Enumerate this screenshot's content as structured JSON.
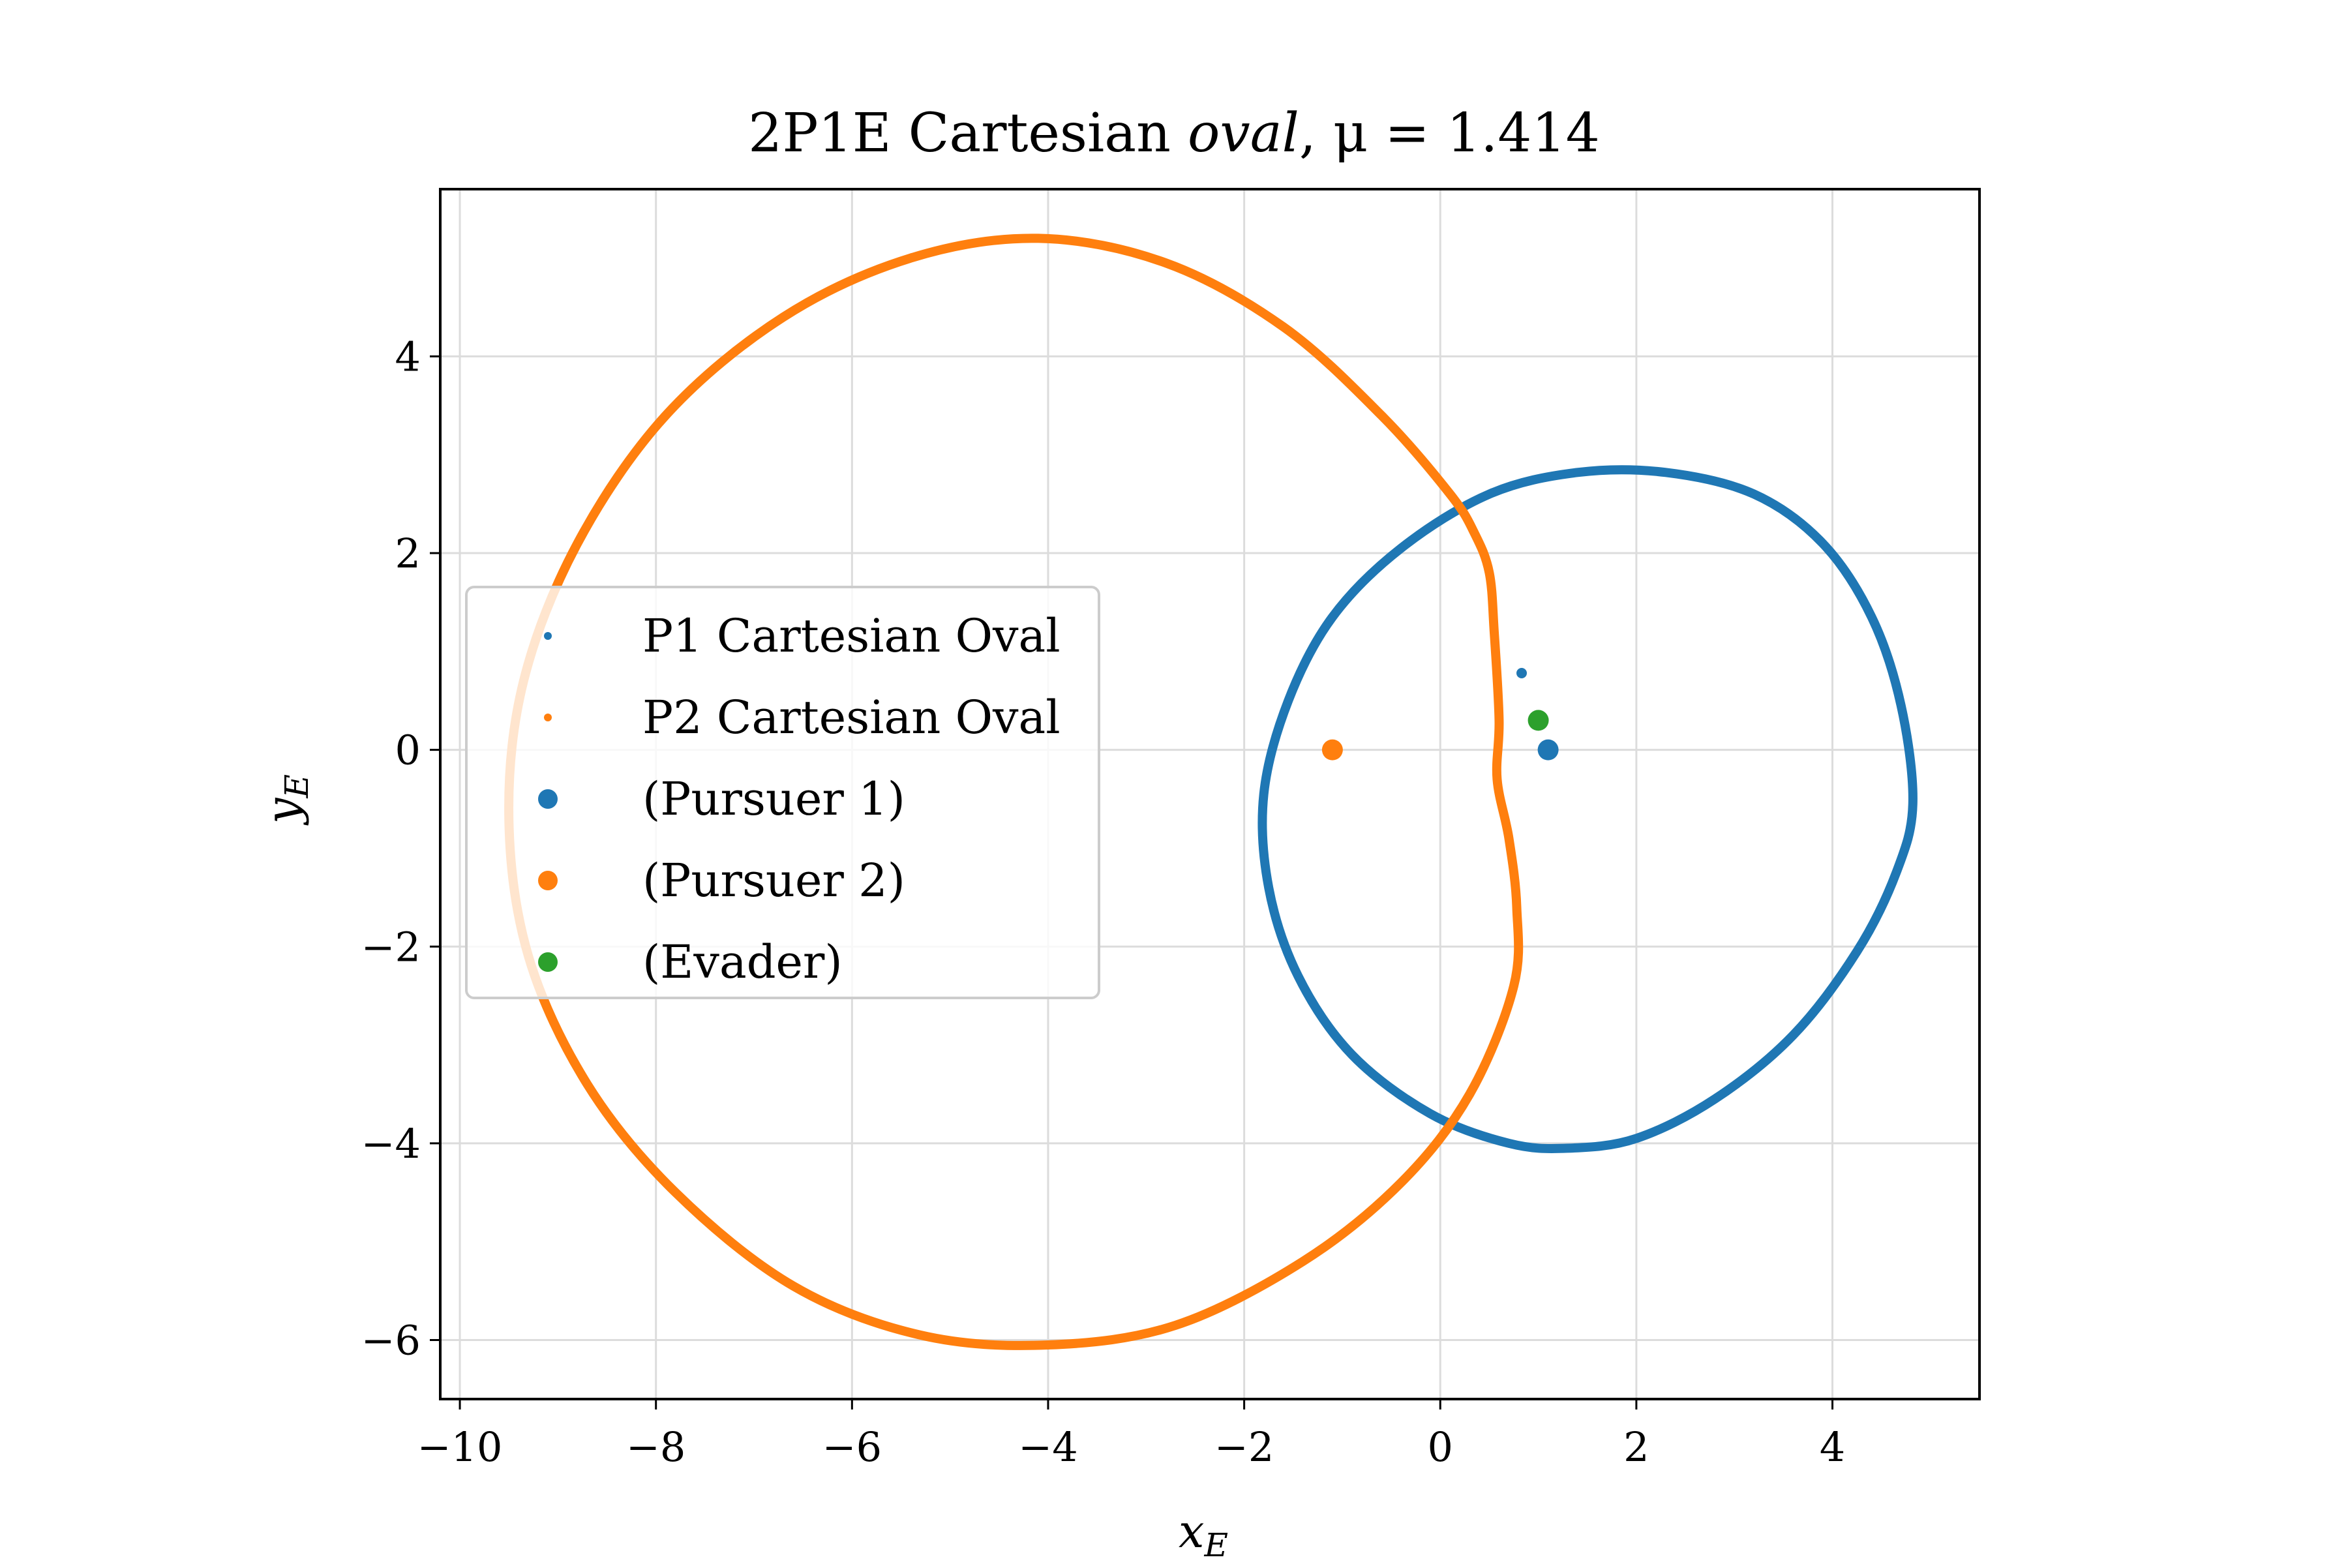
{
  "chart_data": {
    "type": "scatter",
    "title": {
      "prefix": "2P1E Cartesian ",
      "italic": "oval",
      "suffix": ", μ = 1.414"
    },
    "xlabel": {
      "main": "x",
      "sub": "E"
    },
    "ylabel": {
      "main": "y",
      "sub": "E"
    },
    "xlim": [
      -10.2,
      5.5
    ],
    "ylim": [
      -6.6,
      5.7
    ],
    "xticks": [
      {
        "value": -10,
        "label": "−10"
      },
      {
        "value": -8,
        "label": "−8"
      },
      {
        "value": -6,
        "label": "−6"
      },
      {
        "value": -4,
        "label": "−4"
      },
      {
        "value": -2,
        "label": "−2"
      },
      {
        "value": 0,
        "label": "0"
      },
      {
        "value": 2,
        "label": "2"
      },
      {
        "value": 4,
        "label": "4"
      }
    ],
    "yticks": [
      {
        "value": -6,
        "label": "−6"
      },
      {
        "value": -4,
        "label": "−4"
      },
      {
        "value": -2,
        "label": "−2"
      },
      {
        "value": 0,
        "label": "0"
      },
      {
        "value": 2,
        "label": "2"
      },
      {
        "value": 4,
        "label": "4"
      }
    ],
    "grid": true,
    "legend_position": "center-left",
    "series": [
      {
        "name": "P1 Cartesian Oval",
        "kind": "curve",
        "color": "#1f77b4",
        "points": [
          [
            4.82,
            -0.55
          ],
          [
            4.7,
            0.45
          ],
          [
            4.4,
            1.35
          ],
          [
            3.9,
            2.1
          ],
          [
            3.2,
            2.6
          ],
          [
            2.3,
            2.82
          ],
          [
            1.4,
            2.82
          ],
          [
            0.5,
            2.6
          ],
          [
            -0.4,
            2.05
          ],
          [
            -1.1,
            1.35
          ],
          [
            -1.55,
            0.5
          ],
          [
            -1.8,
            -0.45
          ],
          [
            -1.75,
            -1.4
          ],
          [
            -1.45,
            -2.3
          ],
          [
            -0.9,
            -3.1
          ],
          [
            -0.1,
            -3.7
          ],
          [
            0.7,
            -4.0
          ],
          [
            1.3,
            -4.05
          ],
          [
            2.0,
            -3.95
          ],
          [
            2.8,
            -3.55
          ],
          [
            3.6,
            -2.9
          ],
          [
            4.25,
            -2.05
          ],
          [
            4.65,
            -1.25
          ],
          [
            4.82,
            -0.55
          ]
        ]
      },
      {
        "name": "P2 Cartesian Oval",
        "kind": "curve",
        "color": "#ff7f0e",
        "points": [
          [
            0.6,
            0.3
          ],
          [
            0.55,
            1.2
          ],
          [
            0.5,
            1.8
          ],
          [
            0.35,
            2.2
          ],
          [
            0.1,
            2.6
          ],
          [
            -0.6,
            3.4
          ],
          [
            -1.6,
            4.3
          ],
          [
            -2.8,
            4.95
          ],
          [
            -4.1,
            5.2
          ],
          [
            -5.4,
            5.0
          ],
          [
            -6.7,
            4.4
          ],
          [
            -7.9,
            3.4
          ],
          [
            -8.8,
            2.1
          ],
          [
            -9.35,
            0.7
          ],
          [
            -9.5,
            -0.7
          ],
          [
            -9.3,
            -2.1
          ],
          [
            -8.7,
            -3.4
          ],
          [
            -7.8,
            -4.5
          ],
          [
            -6.6,
            -5.45
          ],
          [
            -5.3,
            -5.95
          ],
          [
            -4.0,
            -6.05
          ],
          [
            -2.7,
            -5.85
          ],
          [
            -1.4,
            -5.2
          ],
          [
            -0.4,
            -4.4
          ],
          [
            0.3,
            -3.5
          ],
          [
            0.75,
            -2.4
          ],
          [
            0.78,
            -1.6
          ],
          [
            0.7,
            -0.9
          ],
          [
            0.58,
            -0.3
          ],
          [
            0.6,
            0.3
          ]
        ]
      },
      {
        "name": "(Pursuer 1)",
        "kind": "marker",
        "color": "#1f77b4",
        "points": [
          [
            1.1,
            0.0
          ]
        ]
      },
      {
        "name": "(Pursuer 2)",
        "kind": "marker",
        "color": "#ff7f0e",
        "points": [
          [
            -1.1,
            0.0
          ]
        ]
      },
      {
        "name": "(Evader)",
        "kind": "marker",
        "color": "#2ca02c",
        "points": [
          [
            1.0,
            0.3
          ]
        ]
      }
    ],
    "extra_points": [
      {
        "color": "#1f77b4",
        "x": 0.83,
        "y": 0.78
      }
    ]
  }
}
